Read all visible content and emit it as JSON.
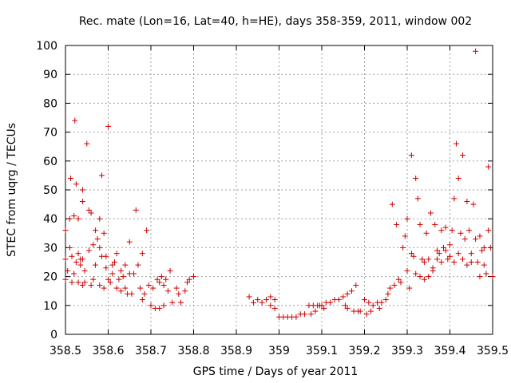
{
  "chart_data": {
    "type": "scatter",
    "title": "Rec. mate (Lon=16, Lat=40, h=HE), days 358-359, 2011, window 002",
    "xlabel": "GPS time / Days of year 2011",
    "ylabel": "STEC from uqrg / TECUs",
    "xlim": [
      358.5,
      359.5
    ],
    "ylim": [
      0,
      100
    ],
    "xticks": [
      358.5,
      358.6,
      358.7,
      358.8,
      358.9,
      359,
      359.1,
      359.2,
      359.3,
      359.4,
      359.5
    ],
    "xtick_labels": [
      "358.5",
      "358.6",
      "358.7",
      "358.8",
      "358.9",
      "359",
      "359.1",
      "359.2",
      "359.3",
      "359.4",
      "359.5"
    ],
    "yticks": [
      0,
      10,
      20,
      30,
      40,
      50,
      60,
      70,
      80,
      90,
      100
    ],
    "ytick_labels": [
      "0",
      "10",
      "20",
      "30",
      "40",
      "50",
      "60",
      "70",
      "80",
      "90",
      "100"
    ],
    "grid": true,
    "marker": "plus",
    "color": "#cc0000",
    "series": [
      {
        "x": [
          358.5,
          358.5,
          358.5,
          358.505,
          358.51,
          358.51,
          358.512,
          358.515,
          358.515,
          358.52,
          358.52,
          358.522,
          358.525,
          358.525,
          358.53,
          358.53,
          358.53,
          358.535,
          358.535,
          358.54,
          358.54,
          358.54,
          358.54,
          358.545,
          358.545,
          358.55,
          358.555,
          358.555,
          358.56,
          358.56,
          358.565,
          358.565,
          358.57,
          358.57,
          358.575,
          358.58,
          358.58,
          358.58,
          358.585,
          358.585,
          358.59,
          358.59,
          358.595,
          358.595,
          358.6,
          358.6,
          358.605,
          358.61,
          358.61,
          358.615,
          358.62,
          358.62,
          358.625,
          358.63,
          358.63,
          358.635,
          358.64,
          358.64,
          358.645,
          358.65,
          358.65,
          358.655,
          358.66,
          358.665,
          358.67,
          358.675,
          358.68,
          358.68,
          358.685,
          358.69,
          358.695,
          358.7,
          358.705,
          358.71,
          358.715,
          358.72,
          358.72,
          358.725,
          358.73,
          358.73,
          358.735,
          358.74,
          358.745,
          358.75,
          358.76,
          358.765,
          358.77,
          358.78,
          358.785,
          358.79,
          358.8
        ],
        "y": [
          36,
          26,
          19,
          22,
          30,
          40,
          54,
          18,
          27,
          21,
          41,
          74,
          25,
          52,
          40,
          18,
          28,
          26,
          24,
          17,
          26,
          46,
          50,
          18,
          22,
          66,
          43,
          29,
          42,
          17,
          31,
          19,
          36,
          24,
          33,
          17,
          30,
          40,
          55,
          27,
          16,
          35,
          23,
          27,
          72,
          19,
          18,
          24,
          21,
          25,
          16,
          28,
          19,
          22,
          15,
          20,
          24,
          16,
          14,
          32,
          21,
          14,
          21,
          43,
          24,
          16,
          28,
          12,
          14,
          36,
          17,
          10,
          16,
          9,
          19,
          18,
          9,
          20,
          10,
          17,
          19,
          15,
          22,
          11,
          16,
          14,
          11,
          15,
          18,
          19,
          20
        ]
      },
      {
        "x": [
          358.93,
          358.94,
          358.95,
          358.96,
          358.97,
          358.98,
          358.98,
          358.99,
          358.99,
          359.0,
          359.01,
          359.02,
          359.03,
          359.04,
          359.05,
          359.06,
          359.07,
          359.075,
          359.08,
          359.085,
          359.09,
          359.095,
          359.1,
          359.105,
          359.11,
          359.12,
          359.13,
          359.14,
          359.15,
          359.155,
          359.16,
          359.16,
          359.17,
          359.175,
          359.18,
          359.185,
          359.19,
          359.2,
          359.205,
          359.21,
          359.215,
          359.22,
          359.23,
          359.235,
          359.24,
          359.25
        ],
        "y": [
          13,
          11,
          12,
          11,
          12,
          10,
          13,
          12,
          9,
          6,
          6,
          6,
          6,
          6,
          7,
          7,
          10,
          7,
          10,
          8,
          10,
          10,
          10,
          9,
          11,
          11,
          12,
          12,
          13,
          10,
          14,
          9,
          15,
          8,
          17,
          8,
          8,
          12,
          7,
          11,
          8,
          10,
          11,
          9,
          11,
          12
        ]
      },
      {
        "x": [
          359.255,
          359.26,
          359.265,
          359.27,
          359.275,
          359.28,
          359.285,
          359.29,
          359.295,
          359.3,
          359.3,
          359.305,
          359.31,
          359.31,
          359.315,
          359.32,
          359.32,
          359.325,
          359.33,
          359.33,
          359.335,
          359.34,
          359.34,
          359.345,
          359.35,
          359.35,
          359.355,
          359.36,
          359.36,
          359.365,
          359.37,
          359.37,
          359.375,
          359.38,
          359.38,
          359.385,
          359.39,
          359.39,
          359.395,
          359.4,
          359.4,
          359.405,
          359.41,
          359.41,
          359.415,
          359.42,
          359.42,
          359.425,
          359.43,
          359.43,
          359.435,
          359.44,
          359.44,
          359.445,
          359.45,
          359.45,
          359.455,
          359.46,
          359.46,
          359.465,
          359.47,
          359.47,
          359.475,
          359.48,
          359.48,
          359.485,
          359.49,
          359.49,
          359.495,
          359.5
        ],
        "y": [
          14,
          16,
          45,
          17,
          38,
          19,
          18,
          30,
          34,
          22,
          40,
          16,
          62,
          28,
          27,
          21,
          54,
          47,
          20,
          38,
          26,
          25,
          19,
          35,
          26,
          20,
          42,
          23,
          22,
          38,
          29,
          26,
          28,
          25,
          36,
          30,
          29,
          37,
          26,
          31,
          27,
          36,
          47,
          25,
          66,
          28,
          54,
          35,
          26,
          62,
          33,
          24,
          46,
          36,
          28,
          25,
          45,
          98,
          33,
          25,
          20,
          34,
          29,
          24,
          30,
          21,
          36,
          58,
          30,
          20
        ]
      }
    ]
  }
}
